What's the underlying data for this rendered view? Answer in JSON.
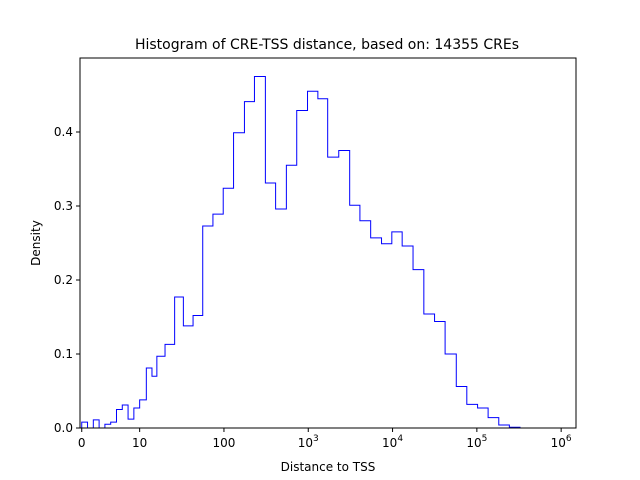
{
  "chart_data": {
    "type": "histogram",
    "title": "Histogram of CRE-TSS distance, based on: 14355 CREs",
    "xlabel": "Distance to TSS",
    "ylabel": "Density",
    "x_scale": "symlog",
    "xlim": [
      -0.3,
      1500000
    ],
    "ylim": [
      0,
      0.5
    ],
    "x_ticks": [
      {
        "value": 0,
        "base": "0",
        "exp": ""
      },
      {
        "value": 10,
        "base": "10",
        "exp": ""
      },
      {
        "value": 100,
        "base": "100",
        "exp": ""
      },
      {
        "value": 1000,
        "base": "10",
        "exp": "3"
      },
      {
        "value": 10000,
        "base": "10",
        "exp": "4"
      },
      {
        "value": 100000,
        "base": "10",
        "exp": "5"
      },
      {
        "value": 1000000,
        "base": "10",
        "exp": "6"
      }
    ],
    "y_ticks": [
      "0.0",
      "0.1",
      "0.2",
      "0.3",
      "0.4"
    ],
    "y_tick_values": [
      0,
      0.1,
      0.2,
      0.3,
      0.4
    ],
    "line_color": "#0000ff",
    "bin_edges": [
      0,
      1,
      2,
      3,
      4,
      5,
      6,
      7,
      8,
      9,
      10,
      12,
      14,
      16,
      20,
      26,
      33,
      43,
      56,
      74,
      98,
      130,
      175,
      230,
      310,
      410,
      550,
      730,
      980,
      1300,
      1700,
      2300,
      3100,
      4100,
      5500,
      7400,
      9800,
      13000,
      17500,
      23500,
      31500,
      42000,
      57000,
      76000,
      102000,
      136000,
      182000,
      243000,
      325000,
      650000
    ],
    "bin_density": [
      0.008,
      0.0,
      0.011,
      0.0,
      0.005,
      0.008,
      0.025,
      0.031,
      0.012,
      0.027,
      0.038,
      0.081,
      0.07,
      0.097,
      0.113,
      0.177,
      0.138,
      0.152,
      0.273,
      0.289,
      0.324,
      0.399,
      0.441,
      0.475,
      0.331,
      0.296,
      0.355,
      0.429,
      0.455,
      0.445,
      0.366,
      0.375,
      0.301,
      0.28,
      0.257,
      0.249,
      0.265,
      0.246,
      0.214,
      0.154,
      0.144,
      0.1,
      0.056,
      0.032,
      0.027,
      0.014,
      0.004,
      0.001,
      0.0
    ]
  }
}
